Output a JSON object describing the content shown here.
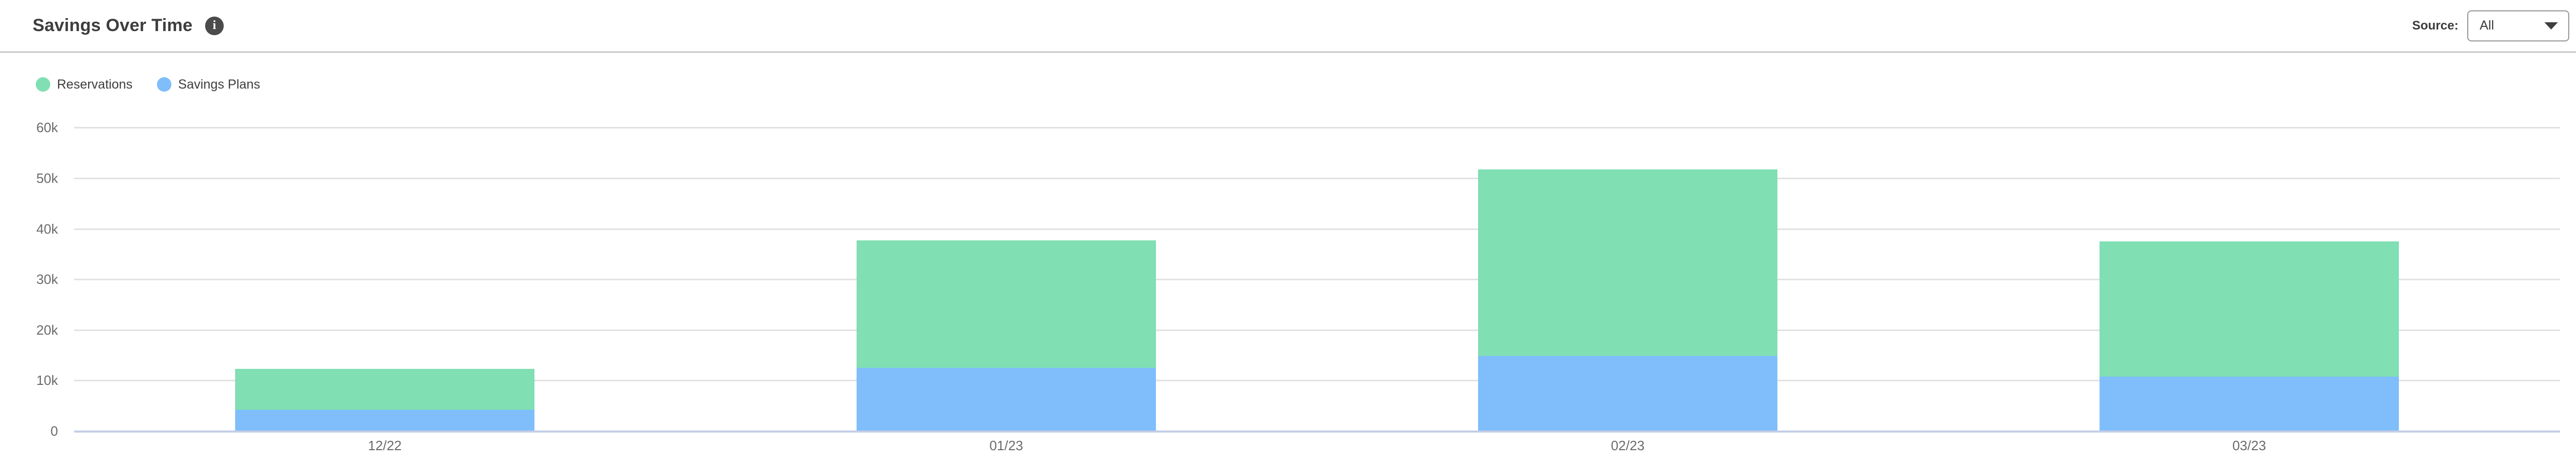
{
  "header": {
    "title": "Savings Over Time",
    "source_label": "Source:",
    "source_value": "All"
  },
  "legend": [
    {
      "label": "Reservations",
      "color": "#80dfb3"
    },
    {
      "label": "Savings Plans",
      "color": "#7fbefb"
    }
  ],
  "chart_data": {
    "type": "bar",
    "stacked": true,
    "title": "Savings Over Time",
    "categories": [
      "12/22",
      "01/23",
      "02/23",
      "03/23"
    ],
    "series": [
      {
        "name": "Reservations",
        "color": "#80dfb3",
        "values": [
          8100,
          25200,
          36800,
          26700
        ]
      },
      {
        "name": "Savings Plans",
        "color": "#7fbefb",
        "values": [
          4200,
          12500,
          14900,
          10800
        ]
      }
    ],
    "stack_bottom_to_top": [
      "Savings Plans",
      "Reservations"
    ],
    "totals": [
      12300,
      37700,
      51700,
      37500
    ],
    "xlabel": "",
    "ylabel": "",
    "ylim": [
      0,
      60000
    ],
    "grid": true,
    "legend_position": "top-left",
    "y_ticks": [
      {
        "label": "60k",
        "value": 60000
      },
      {
        "label": "50k",
        "value": 50000
      },
      {
        "label": "40k",
        "value": 40000
      },
      {
        "label": "30k",
        "value": 30000
      },
      {
        "label": "20k",
        "value": 20000
      },
      {
        "label": "10k",
        "value": 10000
      },
      {
        "label": "0",
        "value": 0
      }
    ],
    "colors": {
      "gridline": "#e2e2e2",
      "zero_line": "#c5cde6",
      "tick_text": "#6b6b6b"
    }
  }
}
